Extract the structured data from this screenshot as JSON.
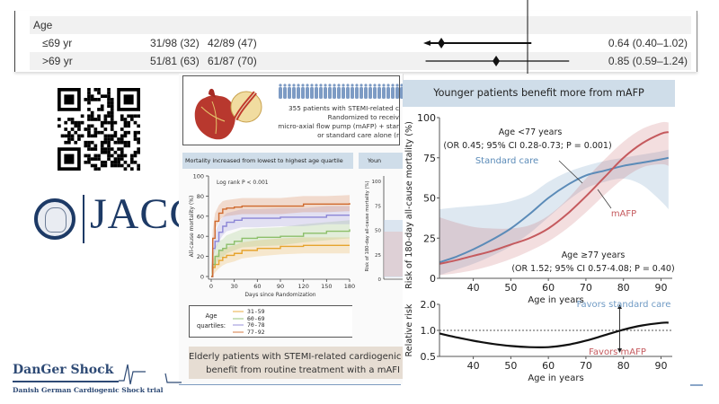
{
  "forest_plot": {
    "rows": [
      {
        "label": "Age",
        "group_a": "",
        "group_b": "",
        "estimate": "",
        "shaded": true
      },
      {
        "label": "≤69 yr",
        "group_a": "31/98 (32)",
        "group_b": "42/89 (47)",
        "estimate": "0.64 (0.40–1.02)",
        "shaded": false,
        "hr": 0.64,
        "ci": [
          0.4,
          1.02
        ],
        "arrow_left": true
      },
      {
        "label": ">69 yr",
        "group_a": "51/81 (63)",
        "group_b": "61/87 (70)",
        "estimate": "0.85 (0.59–1.24)",
        "shaded": true,
        "hr": 0.85,
        "ci": [
          0.59,
          1.24
        ],
        "arrow_left": false
      }
    ]
  },
  "logos": {
    "qr_icon": "qr-code-icon",
    "jacc_text": "JACC",
    "danger_title": "DanGer Shock",
    "danger_subtitle": "Danish German Cardiogenic  Shock trial"
  },
  "abstract": {
    "summary_lines": [
      "355 patients with STEMI-related c",
      "Randomized to receiv",
      "micro-axial flow pump (mAFP) + star",
      "or standard care alone (r"
    ],
    "km_title": "Mortality increased from lowest to highest age quartile",
    "mini_title": "Youn",
    "bottom_lines": [
      "Elderly patients with STEMI-related cardiogenic sh",
      "benefit from routine treatment with a mAFI"
    ],
    "legend_label_1": "Age",
    "legend_label_2": "quartiles:"
  },
  "colors": {
    "header_bg": "#cfdde9",
    "standard_care": "#5b8bb8",
    "mafp": "#c55a5e",
    "q1": "#e6a42e",
    "q2": "#8cbf6a",
    "q3": "#8c86d6",
    "q4": "#d06a2e",
    "abstract_bottom": "#e6ddd3",
    "navy": "#1d3a66"
  },
  "chart_data": [
    {
      "type": "line",
      "id": "km",
      "title": "Mortality increased from lowest to highest age quartile",
      "xlabel": "Days since Randomization",
      "ylabel": "All-cause mortality (%)",
      "annotation": "Log rank P < 0.001",
      "xlim": [
        0,
        180
      ],
      "ylim": [
        0,
        100
      ],
      "xticks": [
        0,
        30,
        60,
        90,
        120,
        150,
        180
      ],
      "yticks": [
        0,
        20,
        40,
        60,
        80,
        100
      ],
      "legend_title": "Age quartiles:",
      "series": [
        {
          "name": "31-59",
          "color": "#e6a42e",
          "x": [
            0,
            2,
            5,
            10,
            15,
            20,
            30,
            40,
            60,
            90,
            120,
            150,
            180
          ],
          "y": [
            0,
            9,
            12,
            16,
            19,
            21,
            23,
            26,
            28,
            30,
            31,
            31,
            31
          ],
          "band": 8
        },
        {
          "name": "60-69",
          "color": "#8cbf6a",
          "x": [
            0,
            2,
            5,
            10,
            15,
            20,
            30,
            40,
            60,
            90,
            120,
            150,
            180
          ],
          "y": [
            0,
            12,
            20,
            26,
            28,
            32,
            35,
            38,
            39,
            40,
            43,
            45,
            47
          ],
          "band": 9
        },
        {
          "name": "70-78",
          "color": "#8c86d6",
          "x": [
            0,
            2,
            5,
            10,
            15,
            20,
            30,
            40,
            60,
            90,
            120,
            150,
            180
          ],
          "y": [
            0,
            28,
            35,
            44,
            50,
            54,
            56,
            58,
            58,
            59,
            59,
            61,
            61
          ],
          "band": 9
        },
        {
          "name": "77-92",
          "color": "#d06a2e",
          "x": [
            0,
            2,
            5,
            10,
            15,
            20,
            30,
            40,
            60,
            90,
            120,
            150,
            180
          ],
          "y": [
            0,
            38,
            55,
            63,
            67,
            68,
            69,
            70,
            70,
            70,
            72,
            72,
            73
          ],
          "band": 8
        }
      ]
    },
    {
      "type": "line",
      "id": "risk",
      "title": "Younger patients benefit more from mAFP",
      "xlabel": "Age in years",
      "ylabel": "Risk of 180-day all-cause mortality (%)",
      "xlim": [
        31,
        93
      ],
      "ylim": [
        0,
        100
      ],
      "xticks": [
        40,
        50,
        60,
        70,
        80,
        90
      ],
      "yticks": [
        0,
        25,
        50,
        75,
        100
      ],
      "annotations": [
        {
          "text": "Age <77 years",
          "position": "top-center"
        },
        {
          "text": "(OR 0.45; 95% CI 0.28-0.73; P = 0.001)",
          "position": "top-center"
        },
        {
          "text": "Age ≥77 years",
          "position": "lower-right"
        },
        {
          "text": "(OR 1.52; 95% CI 0.57-4.08; P = 0.40)",
          "position": "lower-right"
        }
      ],
      "series": [
        {
          "name": "Standard care",
          "color": "#5b8bb8",
          "x": [
            31,
            35,
            40,
            45,
            50,
            55,
            60,
            65,
            70,
            75,
            80,
            85,
            90,
            92
          ],
          "y": [
            10,
            13,
            18,
            24,
            31,
            40,
            50,
            58,
            64,
            67,
            70,
            72,
            74,
            75
          ],
          "lower": [
            2,
            5,
            9,
            14,
            20,
            28,
            38,
            48,
            56,
            60,
            62,
            58,
            48,
            43
          ],
          "upper": [
            43,
            44,
            45,
            46,
            48,
            52,
            60,
            66,
            70,
            73,
            75,
            77,
            79,
            80
          ]
        },
        {
          "name": "mAFP",
          "color": "#c55a5e",
          "x": [
            31,
            35,
            40,
            45,
            50,
            55,
            60,
            65,
            70,
            75,
            80,
            85,
            90,
            92
          ],
          "y": [
            9,
            11,
            14,
            17,
            21,
            25,
            31,
            40,
            51,
            63,
            75,
            84,
            90,
            91
          ],
          "lower": [
            2,
            3,
            5,
            8,
            12,
            17,
            23,
            31,
            41,
            52,
            62,
            69,
            71,
            70
          ],
          "upper": [
            38,
            35,
            32,
            31,
            31,
            33,
            39,
            49,
            62,
            74,
            85,
            93,
            97,
            97
          ]
        }
      ]
    },
    {
      "type": "line",
      "id": "relative-risk",
      "xlabel": "Age in years",
      "ylabel": "Relative risk",
      "xlim": [
        31,
        93
      ],
      "ylim": [
        0.5,
        2.0
      ],
      "ylog": true,
      "xticks": [
        40,
        50,
        60,
        70,
        80,
        90
      ],
      "yticks": [
        0.5,
        1.0,
        2.0
      ],
      "ytick_labels": [
        "0.5",
        "1.0",
        "2.0"
      ],
      "reference_line": 1.0,
      "annotations": [
        {
          "text": "Favors standard care",
          "position": "above-reference",
          "color": "#6f9ac4"
        },
        {
          "text": "Favors mAFP",
          "position": "below-reference",
          "color": "#c55a5e"
        }
      ],
      "series": [
        {
          "name": "Relative risk",
          "color": "#111111",
          "x": [
            31,
            35,
            40,
            45,
            50,
            55,
            60,
            65,
            70,
            75,
            80,
            85,
            90,
            92
          ],
          "y": [
            0.92,
            0.84,
            0.76,
            0.7,
            0.66,
            0.64,
            0.64,
            0.68,
            0.76,
            0.88,
            1.02,
            1.14,
            1.22,
            1.23
          ]
        }
      ]
    }
  ]
}
